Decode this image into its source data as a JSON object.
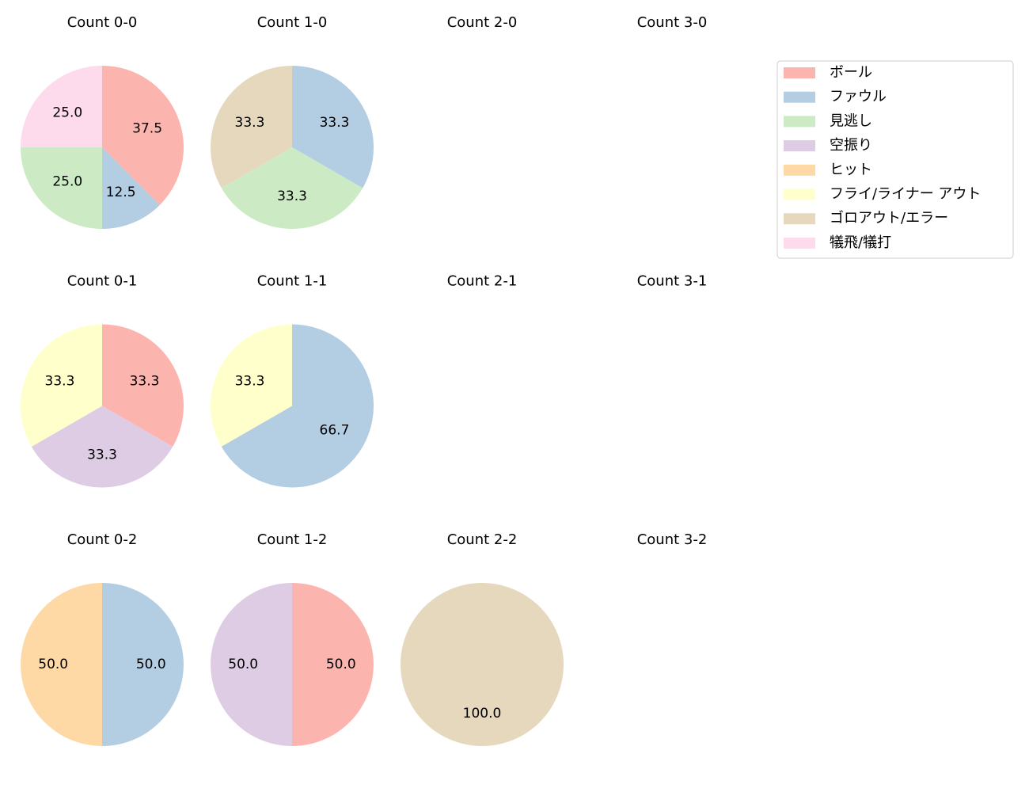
{
  "chart_data": [
    {
      "type": "pie",
      "title": "Count 0-0",
      "categories": [
        "ボール",
        "ファウル",
        "見逃し",
        "犠飛/犠打"
      ],
      "values": [
        37.5,
        12.5,
        25,
        25
      ],
      "value_labels": [
        "37.5",
        "12.5",
        "25.0",
        "25.0"
      ]
    },
    {
      "type": "pie",
      "title": "Count 1-0",
      "categories": [
        "ファウル",
        "見逃し",
        "ゴロアウト/エラー"
      ],
      "values": [
        33.3,
        33.3,
        33.3
      ]
    },
    {
      "type": "pie",
      "title": "Count 2-0",
      "categories": [],
      "values": []
    },
    {
      "type": "pie",
      "title": "Count 3-0",
      "categories": [],
      "values": []
    },
    {
      "type": "pie",
      "title": "Count 0-1",
      "categories": [
        "ボール",
        "空振り",
        "フライ/ライナー アウト"
      ],
      "values": [
        33.3,
        33.3,
        33.3
      ]
    },
    {
      "type": "pie",
      "title": "Count 1-1",
      "categories": [
        "ファウル",
        "フライ/ライナー アウト"
      ],
      "values": [
        66.7,
        33.3
      ]
    },
    {
      "type": "pie",
      "title": "Count 2-1",
      "categories": [],
      "values": []
    },
    {
      "type": "pie",
      "title": "Count 3-1",
      "categories": [],
      "values": []
    },
    {
      "type": "pie",
      "title": "Count 0-2",
      "categories": [
        "ファウル",
        "ヒット"
      ],
      "values": [
        50,
        50
      ],
      "value_labels": [
        "50.0",
        "50.0"
      ]
    },
    {
      "type": "pie",
      "title": "Count 1-2",
      "categories": [
        "ボール",
        "空振り"
      ],
      "values": [
        50,
        50
      ],
      "value_labels": [
        "50.0",
        "50.0"
      ]
    },
    {
      "type": "pie",
      "title": "Count 2-2",
      "categories": [
        "ゴロアウト/エラー"
      ],
      "values": [
        100
      ],
      "value_labels": [
        "100.0"
      ]
    },
    {
      "type": "pie",
      "title": "Count 3-2",
      "categories": [],
      "values": []
    }
  ],
  "legend": {
    "loc": "upper right",
    "labels": [
      "ボール",
      "ファウル",
      "見逃し",
      "空振り",
      "ヒット",
      "フライ/ライナー アウト",
      "ゴロアウト/エラー",
      "犠飛/犠打"
    ],
    "colors": [
      "#fbb4ae",
      "#b3cde3",
      "#ccebc5",
      "#decbe4",
      "#fed9a6",
      "#ffffcc",
      "#e5d8bd",
      "#fddaec"
    ]
  }
}
